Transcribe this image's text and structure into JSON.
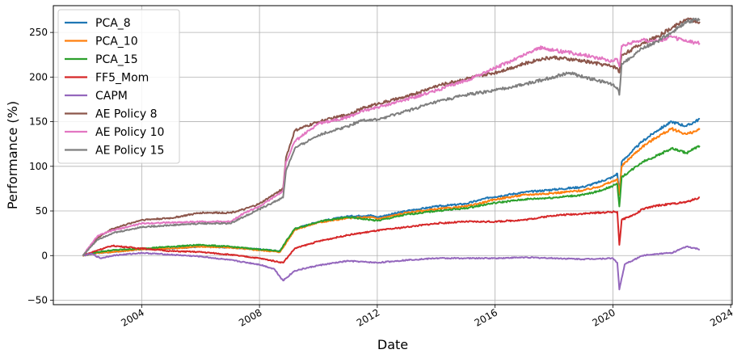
{
  "chart_data": {
    "type": "line",
    "xlabel": "Date",
    "ylabel": "Performance (%)",
    "xlim": [
      2001.0,
      2024.05
    ],
    "ylim": [
      -55,
      280
    ],
    "x_ticks": [
      2004,
      2008,
      2012,
      2016,
      2020,
      2024
    ],
    "x_tick_labels": [
      "2004",
      "2008",
      "2012",
      "2016",
      "2020",
      "2024"
    ],
    "y_ticks": [
      -50,
      0,
      50,
      100,
      150,
      200,
      250
    ],
    "y_tick_labels": [
      "−50",
      "0",
      "50",
      "100",
      "150",
      "200",
      "250"
    ],
    "grid": true,
    "legend_position": "top-left",
    "series": [
      {
        "name": "PCA_8",
        "color": "#1f77b4",
        "points": [
          [
            2002.0,
            0
          ],
          [
            2002.5,
            3
          ],
          [
            2003.0,
            4
          ],
          [
            2004.0,
            7
          ],
          [
            2005.0,
            8
          ],
          [
            2006.0,
            10
          ],
          [
            2007.0,
            9
          ],
          [
            2008.0,
            7
          ],
          [
            2008.7,
            5
          ],
          [
            2008.9,
            15
          ],
          [
            2009.2,
            30
          ],
          [
            2010.0,
            38
          ],
          [
            2011.0,
            44
          ],
          [
            2011.8,
            45
          ],
          [
            2012.0,
            43
          ],
          [
            2013.0,
            50
          ],
          [
            2014.0,
            55
          ],
          [
            2015.0,
            58
          ],
          [
            2015.8,
            65
          ],
          [
            2016.0,
            66
          ],
          [
            2017.0,
            71
          ],
          [
            2018.0,
            74
          ],
          [
            2019.0,
            77
          ],
          [
            2019.5,
            82
          ],
          [
            2020.0,
            88
          ],
          [
            2020.15,
            92
          ],
          [
            2020.22,
            70
          ],
          [
            2020.3,
            105
          ],
          [
            2020.6,
            115
          ],
          [
            2021.0,
            128
          ],
          [
            2021.5,
            140
          ],
          [
            2022.0,
            150
          ],
          [
            2022.5,
            145
          ],
          [
            2022.95,
            153
          ]
        ]
      },
      {
        "name": "PCA_10",
        "color": "#ff7f0e",
        "points": [
          [
            2002.0,
            0
          ],
          [
            2002.5,
            3
          ],
          [
            2003.0,
            4
          ],
          [
            2004.0,
            7
          ],
          [
            2005.0,
            8
          ],
          [
            2006.0,
            10
          ],
          [
            2007.0,
            9
          ],
          [
            2008.0,
            6
          ],
          [
            2008.7,
            4
          ],
          [
            2008.9,
            14
          ],
          [
            2009.2,
            29
          ],
          [
            2010.0,
            37
          ],
          [
            2011.0,
            42
          ],
          [
            2011.8,
            43
          ],
          [
            2012.0,
            41
          ],
          [
            2013.0,
            48
          ],
          [
            2014.0,
            52
          ],
          [
            2015.0,
            55
          ],
          [
            2015.8,
            61
          ],
          [
            2016.0,
            63
          ],
          [
            2017.0,
            68
          ],
          [
            2018.0,
            70
          ],
          [
            2019.0,
            73
          ],
          [
            2019.5,
            77
          ],
          [
            2020.0,
            83
          ],
          [
            2020.15,
            86
          ],
          [
            2020.22,
            68
          ],
          [
            2020.3,
            100
          ],
          [
            2020.6,
            110
          ],
          [
            2021.0,
            122
          ],
          [
            2021.5,
            133
          ],
          [
            2022.0,
            142
          ],
          [
            2022.5,
            136
          ],
          [
            2022.95,
            141
          ]
        ]
      },
      {
        "name": "PCA_15",
        "color": "#2ca02c",
        "points": [
          [
            2002.0,
            0
          ],
          [
            2002.5,
            4
          ],
          [
            2003.0,
            6
          ],
          [
            2004.0,
            8
          ],
          [
            2005.0,
            10
          ],
          [
            2006.0,
            12
          ],
          [
            2007.0,
            10
          ],
          [
            2008.0,
            7
          ],
          [
            2008.7,
            5
          ],
          [
            2008.9,
            16
          ],
          [
            2009.2,
            30
          ],
          [
            2010.0,
            38
          ],
          [
            2011.0,
            43
          ],
          [
            2011.8,
            40
          ],
          [
            2012.0,
            39
          ],
          [
            2013.0,
            46
          ],
          [
            2014.0,
            50
          ],
          [
            2015.0,
            53
          ],
          [
            2015.8,
            58
          ],
          [
            2016.0,
            59
          ],
          [
            2017.0,
            63
          ],
          [
            2018.0,
            65
          ],
          [
            2019.0,
            68
          ],
          [
            2019.5,
            72
          ],
          [
            2020.0,
            78
          ],
          [
            2020.15,
            80
          ],
          [
            2020.22,
            55
          ],
          [
            2020.3,
            88
          ],
          [
            2020.6,
            95
          ],
          [
            2021.0,
            105
          ],
          [
            2021.5,
            112
          ],
          [
            2022.0,
            120
          ],
          [
            2022.5,
            115
          ],
          [
            2022.95,
            123
          ]
        ]
      },
      {
        "name": "FF5_Mom",
        "color": "#d62728",
        "points": [
          [
            2002.0,
            0
          ],
          [
            2002.5,
            6
          ],
          [
            2003.0,
            11
          ],
          [
            2004.0,
            8
          ],
          [
            2005.0,
            5
          ],
          [
            2006.0,
            4
          ],
          [
            2007.0,
            1
          ],
          [
            2008.0,
            -3
          ],
          [
            2008.8,
            -8
          ],
          [
            2009.2,
            8
          ],
          [
            2010.0,
            16
          ],
          [
            2011.0,
            23
          ],
          [
            2012.0,
            28
          ],
          [
            2013.0,
            32
          ],
          [
            2014.0,
            36
          ],
          [
            2015.0,
            38
          ],
          [
            2016.0,
            38
          ],
          [
            2017.0,
            40
          ],
          [
            2018.0,
            45
          ],
          [
            2019.0,
            47
          ],
          [
            2020.0,
            49
          ],
          [
            2020.15,
            49
          ],
          [
            2020.22,
            12
          ],
          [
            2020.3,
            40
          ],
          [
            2020.8,
            47
          ],
          [
            2021.0,
            52
          ],
          [
            2021.5,
            56
          ],
          [
            2022.0,
            58
          ],
          [
            2022.5,
            60
          ],
          [
            2022.95,
            65
          ]
        ]
      },
      {
        "name": "CAPM",
        "color": "#9467bd",
        "points": [
          [
            2002.0,
            0
          ],
          [
            2002.3,
            2
          ],
          [
            2002.6,
            -3
          ],
          [
            2003.0,
            0
          ],
          [
            2004.0,
            3
          ],
          [
            2005.0,
            1
          ],
          [
            2006.0,
            -1
          ],
          [
            2007.0,
            -5
          ],
          [
            2008.0,
            -10
          ],
          [
            2008.5,
            -15
          ],
          [
            2008.8,
            -28
          ],
          [
            2009.2,
            -17
          ],
          [
            2010.0,
            -11
          ],
          [
            2011.0,
            -6
          ],
          [
            2012.0,
            -8
          ],
          [
            2013.0,
            -5
          ],
          [
            2014.0,
            -3
          ],
          [
            2015.0,
            -3
          ],
          [
            2016.0,
            -3
          ],
          [
            2017.0,
            -2
          ],
          [
            2018.0,
            -3
          ],
          [
            2019.0,
            -4
          ],
          [
            2020.0,
            -3
          ],
          [
            2020.15,
            -8
          ],
          [
            2020.22,
            -38
          ],
          [
            2020.4,
            -10
          ],
          [
            2021.0,
            0
          ],
          [
            2021.5,
            2
          ],
          [
            2022.0,
            3
          ],
          [
            2022.5,
            10
          ],
          [
            2022.95,
            7
          ]
        ]
      },
      {
        "name": "AE Policy 8",
        "color": "#8c564b",
        "points": [
          [
            2002.0,
            0
          ],
          [
            2002.5,
            20
          ],
          [
            2003.0,
            30
          ],
          [
            2004.0,
            40
          ],
          [
            2005.0,
            42
          ],
          [
            2006.0,
            48
          ],
          [
            2007.0,
            48
          ],
          [
            2007.5,
            52
          ],
          [
            2008.0,
            58
          ],
          [
            2008.8,
            75
          ],
          [
            2008.9,
            110
          ],
          [
            2009.2,
            140
          ],
          [
            2010.0,
            150
          ],
          [
            2011.0,
            158
          ],
          [
            2011.5,
            165
          ],
          [
            2012.0,
            170
          ],
          [
            2013.0,
            178
          ],
          [
            2014.0,
            190
          ],
          [
            2015.0,
            198
          ],
          [
            2016.0,
            205
          ],
          [
            2017.0,
            215
          ],
          [
            2017.5,
            220
          ],
          [
            2018.0,
            222
          ],
          [
            2019.0,
            218
          ],
          [
            2020.0,
            212
          ],
          [
            2020.15,
            210
          ],
          [
            2020.22,
            205
          ],
          [
            2020.3,
            225
          ],
          [
            2020.6,
            230
          ],
          [
            2021.0,
            238
          ],
          [
            2021.5,
            245
          ],
          [
            2022.0,
            255
          ],
          [
            2022.5,
            265
          ],
          [
            2022.95,
            262
          ]
        ]
      },
      {
        "name": "AE Policy 10",
        "color": "#e377c2",
        "points": [
          [
            2002.0,
            0
          ],
          [
            2002.5,
            22
          ],
          [
            2003.0,
            28
          ],
          [
            2004.0,
            36
          ],
          [
            2005.0,
            37
          ],
          [
            2006.0,
            38
          ],
          [
            2007.0,
            38
          ],
          [
            2007.5,
            48
          ],
          [
            2008.0,
            55
          ],
          [
            2008.8,
            72
          ],
          [
            2008.9,
            105
          ],
          [
            2009.2,
            128
          ],
          [
            2010.0,
            148
          ],
          [
            2011.0,
            155
          ],
          [
            2011.5,
            162
          ],
          [
            2012.0,
            166
          ],
          [
            2013.0,
            175
          ],
          [
            2014.0,
            185
          ],
          [
            2015.0,
            196
          ],
          [
            2016.0,
            210
          ],
          [
            2017.0,
            225
          ],
          [
            2017.5,
            233
          ],
          [
            2018.0,
            230
          ],
          [
            2019.0,
            225
          ],
          [
            2020.0,
            218
          ],
          [
            2020.15,
            220
          ],
          [
            2020.22,
            212
          ],
          [
            2020.3,
            235
          ],
          [
            2020.6,
            238
          ],
          [
            2021.0,
            242
          ],
          [
            2021.5,
            240
          ],
          [
            2022.0,
            245
          ],
          [
            2022.5,
            240
          ],
          [
            2022.95,
            238
          ]
        ]
      },
      {
        "name": "AE Policy 15",
        "color": "#7f7f7f",
        "points": [
          [
            2002.0,
            0
          ],
          [
            2002.5,
            18
          ],
          [
            2003.0,
            25
          ],
          [
            2004.0,
            32
          ],
          [
            2005.0,
            34
          ],
          [
            2006.0,
            36
          ],
          [
            2007.0,
            36
          ],
          [
            2007.5,
            44
          ],
          [
            2008.0,
            52
          ],
          [
            2008.8,
            65
          ],
          [
            2008.9,
            95
          ],
          [
            2009.2,
            120
          ],
          [
            2010.0,
            135
          ],
          [
            2011.0,
            145
          ],
          [
            2011.5,
            152
          ],
          [
            2012.0,
            152
          ],
          [
            2013.0,
            162
          ],
          [
            2014.0,
            172
          ],
          [
            2015.0,
            180
          ],
          [
            2016.0,
            185
          ],
          [
            2017.0,
            192
          ],
          [
            2018.0,
            200
          ],
          [
            2018.5,
            205
          ],
          [
            2019.0,
            200
          ],
          [
            2020.0,
            192
          ],
          [
            2020.15,
            188
          ],
          [
            2020.22,
            180
          ],
          [
            2020.3,
            215
          ],
          [
            2020.6,
            222
          ],
          [
            2021.0,
            232
          ],
          [
            2021.5,
            240
          ],
          [
            2022.0,
            250
          ],
          [
            2022.5,
            262
          ],
          [
            2022.95,
            265
          ]
        ]
      }
    ]
  }
}
